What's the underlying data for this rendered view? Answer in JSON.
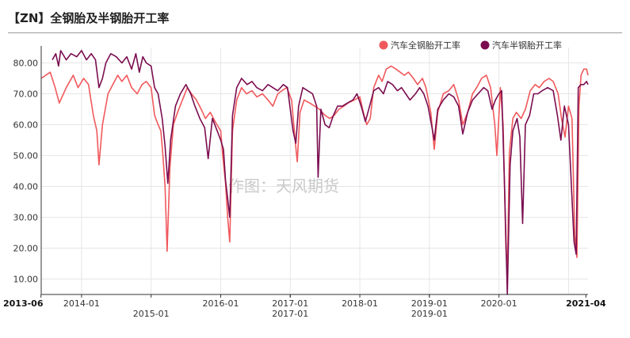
{
  "title": "【ZN】全钢胎及半钢胎开工率",
  "watermark": "作图：天风期货",
  "chart_data": {
    "type": "line",
    "title": "【ZN】全钢胎及半钢胎开工率",
    "xlabel": "",
    "ylabel": "",
    "ylim": [
      5,
      85
    ],
    "yticks": [
      "80.00",
      "70.00",
      "60.00",
      "50.00",
      "40.00",
      "30.00",
      "20.00",
      "10.00"
    ],
    "xlim": [
      2013.42,
      2021.28
    ],
    "xticks_top": [
      "2013-06",
      "2014-01",
      "2016-01",
      "2017-01",
      "2018-01",
      "2019-01",
      "2020-01",
      "2021-04"
    ],
    "xticks_bottom": [
      "2015-01",
      "2017-01",
      "2019-01"
    ],
    "legend_position": "top-right",
    "grid": true,
    "colors": {
      "all_steel": "#f0595c",
      "semi_steel": "#7a0d4f"
    },
    "series": [
      {
        "name": "汽车全钢胎开工率",
        "points": [
          [
            2013.42,
            75
          ],
          [
            2013.55,
            77
          ],
          [
            2013.62,
            72
          ],
          [
            2013.68,
            67
          ],
          [
            2013.78,
            72
          ],
          [
            2013.88,
            76
          ],
          [
            2013.95,
            72
          ],
          [
            2014.03,
            75
          ],
          [
            2014.1,
            73
          ],
          [
            2014.17,
            63
          ],
          [
            2014.22,
            58
          ],
          [
            2014.25,
            47
          ],
          [
            2014.3,
            60
          ],
          [
            2014.38,
            70
          ],
          [
            2014.45,
            73
          ],
          [
            2014.52,
            76
          ],
          [
            2014.58,
            74
          ],
          [
            2014.65,
            76
          ],
          [
            2014.72,
            72
          ],
          [
            2014.8,
            70
          ],
          [
            2014.87,
            73
          ],
          [
            2014.93,
            74
          ],
          [
            2015.0,
            72
          ],
          [
            2015.05,
            63
          ],
          [
            2015.1,
            60
          ],
          [
            2015.14,
            58
          ],
          [
            2015.17,
            50
          ],
          [
            2015.2,
            40
          ],
          [
            2015.23,
            19
          ],
          [
            2015.27,
            46
          ],
          [
            2015.32,
            60
          ],
          [
            2015.38,
            64
          ],
          [
            2015.45,
            68
          ],
          [
            2015.52,
            72
          ],
          [
            2015.58,
            70
          ],
          [
            2015.65,
            68
          ],
          [
            2015.72,
            65
          ],
          [
            2015.78,
            62
          ],
          [
            2015.85,
            64
          ],
          [
            2015.92,
            61
          ],
          [
            2016.0,
            58
          ],
          [
            2016.03,
            50
          ],
          [
            2016.07,
            41
          ],
          [
            2016.1,
            30
          ],
          [
            2016.13,
            22
          ],
          [
            2016.17,
            58
          ],
          [
            2016.23,
            68
          ],
          [
            2016.3,
            72
          ],
          [
            2016.37,
            70
          ],
          [
            2016.45,
            71
          ],
          [
            2016.52,
            69
          ],
          [
            2016.6,
            70
          ],
          [
            2016.68,
            68
          ],
          [
            2016.75,
            66
          ],
          [
            2016.82,
            70
          ],
          [
            2016.88,
            71
          ],
          [
            2016.95,
            72
          ],
          [
            2017.02,
            68
          ],
          [
            2017.07,
            55
          ],
          [
            2017.1,
            48
          ],
          [
            2017.14,
            64
          ],
          [
            2017.2,
            68
          ],
          [
            2017.28,
            67
          ],
          [
            2017.35,
            66
          ],
          [
            2017.42,
            65
          ],
          [
            2017.5,
            63
          ],
          [
            2017.57,
            62
          ],
          [
            2017.63,
            63
          ],
          [
            2017.7,
            65
          ],
          [
            2017.77,
            66
          ],
          [
            2017.83,
            67
          ],
          [
            2017.92,
            68
          ],
          [
            2018.0,
            69
          ],
          [
            2018.05,
            64
          ],
          [
            2018.1,
            60
          ],
          [
            2018.15,
            62
          ],
          [
            2018.2,
            72
          ],
          [
            2018.27,
            76
          ],
          [
            2018.32,
            74
          ],
          [
            2018.38,
            78
          ],
          [
            2018.45,
            79
          ],
          [
            2018.52,
            78
          ],
          [
            2018.58,
            77
          ],
          [
            2018.64,
            76
          ],
          [
            2018.7,
            77
          ],
          [
            2018.77,
            75
          ],
          [
            2018.83,
            73
          ],
          [
            2018.9,
            75
          ],
          [
            2018.95,
            72
          ],
          [
            2019.02,
            64
          ],
          [
            2019.07,
            52
          ],
          [
            2019.12,
            64
          ],
          [
            2019.2,
            70
          ],
          [
            2019.28,
            71
          ],
          [
            2019.35,
            73
          ],
          [
            2019.42,
            68
          ],
          [
            2019.48,
            60
          ],
          [
            2019.55,
            64
          ],
          [
            2019.62,
            70
          ],
          [
            2019.68,
            72
          ],
          [
            2019.75,
            75
          ],
          [
            2019.82,
            76
          ],
          [
            2019.88,
            72
          ],
          [
            2019.94,
            60
          ],
          [
            2019.97,
            50
          ],
          [
            2020.02,
            72
          ],
          [
            2020.06,
            60
          ],
          [
            2020.1,
            20
          ],
          [
            2020.12,
            12
          ],
          [
            2020.15,
            51
          ],
          [
            2020.2,
            62
          ],
          [
            2020.25,
            64
          ],
          [
            2020.32,
            62
          ],
          [
            2020.38,
            65
          ],
          [
            2020.45,
            71
          ],
          [
            2020.52,
            73
          ],
          [
            2020.58,
            72
          ],
          [
            2020.65,
            74
          ],
          [
            2020.72,
            75
          ],
          [
            2020.78,
            74
          ],
          [
            2020.85,
            70
          ],
          [
            2020.9,
            62
          ],
          [
            2020.95,
            56
          ],
          [
            2021.0,
            66
          ],
          [
            2021.05,
            62
          ],
          [
            2021.09,
            24
          ],
          [
            2021.12,
            17
          ],
          [
            2021.15,
            66
          ],
          [
            2021.18,
            76
          ],
          [
            2021.22,
            78
          ],
          [
            2021.26,
            78
          ],
          [
            2021.28,
            76
          ]
        ]
      },
      {
        "name": "汽车半钢胎开工率",
        "points": [
          [
            2013.58,
            81
          ],
          [
            2013.63,
            83
          ],
          [
            2013.67,
            79
          ],
          [
            2013.7,
            84
          ],
          [
            2013.78,
            81
          ],
          [
            2013.85,
            83
          ],
          [
            2013.93,
            82
          ],
          [
            2014.0,
            84
          ],
          [
            2014.07,
            81
          ],
          [
            2014.14,
            83
          ],
          [
            2014.2,
            81
          ],
          [
            2014.25,
            72
          ],
          [
            2014.3,
            75
          ],
          [
            2014.35,
            80
          ],
          [
            2014.42,
            83
          ],
          [
            2014.5,
            82
          ],
          [
            2014.58,
            80
          ],
          [
            2014.65,
            82
          ],
          [
            2014.72,
            78
          ],
          [
            2014.78,
            83
          ],
          [
            2014.83,
            77
          ],
          [
            2014.88,
            82
          ],
          [
            2014.93,
            80
          ],
          [
            2015.0,
            79
          ],
          [
            2015.05,
            72
          ],
          [
            2015.1,
            70
          ],
          [
            2015.16,
            62
          ],
          [
            2015.2,
            53
          ],
          [
            2015.24,
            41
          ],
          [
            2015.28,
            55
          ],
          [
            2015.35,
            66
          ],
          [
            2015.42,
            70
          ],
          [
            2015.5,
            73
          ],
          [
            2015.57,
            70
          ],
          [
            2015.63,
            66
          ],
          [
            2015.7,
            62
          ],
          [
            2015.77,
            59
          ],
          [
            2015.82,
            49
          ],
          [
            2015.88,
            62
          ],
          [
            2015.95,
            58
          ],
          [
            2016.0,
            55
          ],
          [
            2016.04,
            52
          ],
          [
            2016.07,
            42
          ],
          [
            2016.1,
            36
          ],
          [
            2016.13,
            30
          ],
          [
            2016.17,
            63
          ],
          [
            2016.23,
            72
          ],
          [
            2016.3,
            75
          ],
          [
            2016.38,
            73
          ],
          [
            2016.45,
            74
          ],
          [
            2016.52,
            72
          ],
          [
            2016.6,
            71
          ],
          [
            2016.68,
            73
          ],
          [
            2016.75,
            72
          ],
          [
            2016.82,
            71
          ],
          [
            2016.9,
            73
          ],
          [
            2016.96,
            72
          ],
          [
            2017.04,
            58
          ],
          [
            2017.08,
            54
          ],
          [
            2017.12,
            66
          ],
          [
            2017.18,
            72
          ],
          [
            2017.25,
            71
          ],
          [
            2017.32,
            70
          ],
          [
            2017.38,
            66
          ],
          [
            2017.4,
            43
          ],
          [
            2017.44,
            65
          ],
          [
            2017.5,
            60
          ],
          [
            2017.56,
            59
          ],
          [
            2017.62,
            63
          ],
          [
            2017.68,
            66
          ],
          [
            2017.75,
            66
          ],
          [
            2017.82,
            67
          ],
          [
            2017.9,
            68
          ],
          [
            2017.96,
            70
          ],
          [
            2018.02,
            66
          ],
          [
            2018.08,
            61
          ],
          [
            2018.14,
            66
          ],
          [
            2018.2,
            71
          ],
          [
            2018.27,
            72
          ],
          [
            2018.34,
            70
          ],
          [
            2018.4,
            74
          ],
          [
            2018.47,
            73
          ],
          [
            2018.54,
            71
          ],
          [
            2018.6,
            72
          ],
          [
            2018.66,
            70
          ],
          [
            2018.72,
            68
          ],
          [
            2018.8,
            70
          ],
          [
            2018.86,
            72
          ],
          [
            2018.92,
            70
          ],
          [
            2018.98,
            66
          ],
          [
            2019.03,
            60
          ],
          [
            2019.07,
            55
          ],
          [
            2019.12,
            65
          ],
          [
            2019.2,
            68
          ],
          [
            2019.28,
            70
          ],
          [
            2019.35,
            69
          ],
          [
            2019.42,
            66
          ],
          [
            2019.48,
            57
          ],
          [
            2019.55,
            64
          ],
          [
            2019.62,
            68
          ],
          [
            2019.7,
            70
          ],
          [
            2019.78,
            72
          ],
          [
            2019.84,
            71
          ],
          [
            2019.9,
            65
          ],
          [
            2019.95,
            68
          ],
          [
            2020.0,
            70
          ],
          [
            2020.04,
            71
          ],
          [
            2020.08,
            40
          ],
          [
            2020.12,
            5
          ],
          [
            2020.16,
            47
          ],
          [
            2020.2,
            58
          ],
          [
            2020.26,
            62
          ],
          [
            2020.3,
            56
          ],
          [
            2020.34,
            28
          ],
          [
            2020.38,
            60
          ],
          [
            2020.44,
            63
          ],
          [
            2020.5,
            70
          ],
          [
            2020.56,
            70
          ],
          [
            2020.62,
            71
          ],
          [
            2020.7,
            72
          ],
          [
            2020.78,
            71
          ],
          [
            2020.84,
            63
          ],
          [
            2020.89,
            55
          ],
          [
            2020.94,
            66
          ],
          [
            2021.0,
            60
          ],
          [
            2021.04,
            41
          ],
          [
            2021.08,
            22
          ],
          [
            2021.11,
            18
          ],
          [
            2021.14,
            72
          ],
          [
            2021.18,
            73
          ],
          [
            2021.22,
            73
          ],
          [
            2021.26,
            74
          ],
          [
            2021.28,
            73
          ]
        ]
      }
    ]
  }
}
